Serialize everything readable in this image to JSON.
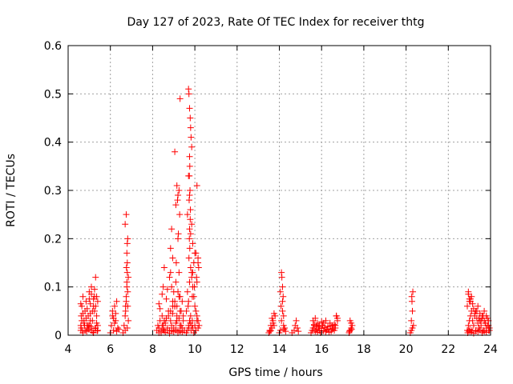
{
  "chart_data": {
    "type": "scatter",
    "title": "Day 127 of 2023, Rate Of TEC Index for receiver thtg",
    "xlabel": "GPS time / hours",
    "ylabel": "ROTI / TECUs",
    "xlim": [
      4,
      24
    ],
    "ylim": [
      0,
      0.6
    ],
    "xticks": [
      "4",
      "6",
      "8",
      "10",
      "12",
      "14",
      "16",
      "18",
      "20",
      "22",
      "24"
    ],
    "yticks": [
      "0",
      "0.1",
      "0.2",
      "0.3",
      "0.4",
      "0.5",
      "0.6"
    ],
    "grid": true,
    "marker": "+",
    "color": "#ff0000",
    "series": [
      {
        "x": [
          4.6,
          4.62,
          4.65,
          4.7,
          4.75,
          4.8,
          4.85,
          4.9,
          4.95,
          5.0,
          5.05,
          5.1,
          5.15,
          5.2,
          5.25,
          5.3,
          5.35,
          5.4,
          4.6,
          4.7,
          4.8,
          4.9,
          5.0,
          5.1,
          5.2,
          5.3,
          5.4,
          4.65,
          4.75,
          4.85,
          4.95,
          5.05,
          5.15,
          5.25,
          5.35,
          4.6,
          4.7,
          4.9,
          5.0,
          5.05,
          5.1,
          5.2,
          5.25,
          5.3,
          5.35,
          5.4,
          4.62,
          4.68,
          4.78,
          4.88,
          4.98,
          5.08,
          5.18,
          5.28,
          5.38,
          6.0,
          6.05,
          6.1,
          6.15,
          6.2,
          6.25,
          6.3,
          6.35,
          6.1,
          6.2,
          6.3,
          6.4,
          6.15,
          6.25,
          6.6,
          6.65,
          6.7,
          6.72,
          6.75,
          6.78,
          6.8,
          6.82,
          6.85,
          6.7,
          6.75,
          6.8,
          6.8,
          6.78,
          6.82,
          6.75,
          6.72,
          6.85,
          6.7,
          6.8,
          6.78,
          6.76,
          6.82,
          8.2,
          8.25,
          8.3,
          8.35,
          8.4,
          8.45,
          8.5,
          8.55,
          8.6,
          8.65,
          8.7,
          8.75,
          8.8,
          8.85,
          8.9,
          8.95,
          9.0,
          9.05,
          9.1,
          9.15,
          9.2,
          9.25,
          9.3,
          9.35,
          9.4,
          9.45,
          9.5,
          8.3,
          8.4,
          8.5,
          8.6,
          8.7,
          8.8,
          8.9,
          9.0,
          9.1,
          9.2,
          9.3,
          9.4,
          9.5,
          8.45,
          8.55,
          8.75,
          8.85,
          8.95,
          9.05,
          9.15,
          9.25,
          9.35,
          8.5,
          8.55,
          8.8,
          8.85,
          8.9,
          8.95,
          9.0,
          9.1,
          9.15,
          9.2,
          9.25,
          9.3,
          9.4,
          8.3,
          8.35,
          8.45,
          8.65,
          8.7,
          8.95,
          9.05,
          9.2,
          9.3,
          9.45,
          9.1,
          9.2,
          9.15,
          9.25,
          9.18,
          9.22,
          9.12,
          9.28,
          9.05,
          9.3,
          8.9,
          8.85,
          9.6,
          9.65,
          9.7,
          9.72,
          9.75,
          9.78,
          9.8,
          9.82,
          9.85,
          9.88,
          9.9,
          9.95,
          10.0,
          10.05,
          10.1,
          10.15,
          10.2,
          9.7,
          9.72,
          9.75,
          9.78,
          9.8,
          9.82,
          9.85,
          9.75,
          9.76,
          9.74,
          9.77,
          9.73,
          9.79,
          9.78,
          9.75,
          9.74,
          9.76,
          9.72,
          9.8,
          9.85,
          9.9,
          9.95,
          10.0,
          10.05,
          10.1,
          10.15,
          9.7,
          9.65,
          9.75,
          9.85,
          9.95,
          10.05,
          10.15,
          9.6,
          9.68,
          9.88,
          9.98,
          10.08,
          10.18,
          9.8,
          9.9,
          10.0,
          10.1,
          9.65,
          9.75,
          9.85,
          10.15,
          9.7,
          9.9,
          10.1,
          13.5,
          13.55,
          13.6,
          13.65,
          13.7,
          13.75,
          13.8,
          13.6,
          13.7,
          13.65,
          13.75,
          13.55,
          14.0,
          14.05,
          14.1,
          14.15,
          14.2,
          14.25,
          14.3,
          14.1,
          14.12,
          14.15,
          14.18,
          14.08,
          14.2,
          14.15,
          14.05,
          14.22,
          14.6,
          14.7,
          14.8,
          14.9,
          14.75,
          14.85,
          15.5,
          15.55,
          15.6,
          15.65,
          15.7,
          15.75,
          15.8,
          15.85,
          15.9,
          15.95,
          16.0,
          16.05,
          16.1,
          16.15,
          16.2,
          16.25,
          16.3,
          16.35,
          16.4,
          16.45,
          16.5,
          16.55,
          16.6,
          16.65,
          16.7,
          16.75,
          15.6,
          15.7,
          15.8,
          15.9,
          16.0,
          16.2,
          16.4,
          16.6,
          16.7,
          16.75,
          15.65,
          15.75,
          15.85,
          16.1,
          16.3,
          16.5,
          16.65,
          17.3,
          17.35,
          17.4,
          17.45,
          17.35,
          17.4,
          17.32,
          17.42,
          20.2,
          20.25,
          20.3,
          20.35,
          20.25,
          20.3,
          20.28,
          20.32,
          20.27,
          22.9,
          22.95,
          23.0,
          23.05,
          23.1,
          23.15,
          23.2,
          23.25,
          23.3,
          23.35,
          23.4,
          23.45,
          23.5,
          23.55,
          23.6,
          23.65,
          23.7,
          23.75,
          23.8,
          23.85,
          23.9,
          23.95,
          22.9,
          23.0,
          23.1,
          23.2,
          23.3,
          23.4,
          23.5,
          23.6,
          23.7,
          23.8,
          23.9,
          22.95,
          23.05,
          23.15,
          23.25,
          23.35,
          23.45,
          23.55,
          23.65,
          23.75,
          23.85,
          23.95,
          22.92,
          22.98,
          23.02,
          23.08,
          23.12,
          23.2,
          23.3,
          23.4,
          23.5,
          23.6,
          23.7,
          23.8,
          23.9,
          22.95,
          23.0,
          23.05
        ],
        "y": [
          0.02,
          0.04,
          0.06,
          0.08,
          0.03,
          0.05,
          0.07,
          0.02,
          0.04,
          0.09,
          0.03,
          0.1,
          0.05,
          0.06,
          0.08,
          0.12,
          0.04,
          0.02,
          0.01,
          0.005,
          0.01,
          0.015,
          0.02,
          0.01,
          0.005,
          0.015,
          0.01,
          0.03,
          0.025,
          0.035,
          0.02,
          0.045,
          0.03,
          0.05,
          0.025,
          0.065,
          0.045,
          0.055,
          0.075,
          0.065,
          0.085,
          0.075,
          0.095,
          0.06,
          0.08,
          0.07,
          0.015,
          0.01,
          0.02,
          0.008,
          0.012,
          0.018,
          0.006,
          0.014,
          0.009,
          0.005,
          0.02,
          0.04,
          0.01,
          0.06,
          0.03,
          0.07,
          0.015,
          0.05,
          0.025,
          0.008,
          0.012,
          0.035,
          0.045,
          0.005,
          0.02,
          0.04,
          0.06,
          0.08,
          0.1,
          0.19,
          0.2,
          0.12,
          0.23,
          0.25,
          0.15,
          0.13,
          0.11,
          0.09,
          0.07,
          0.05,
          0.03,
          0.01,
          0.015,
          0.17,
          0.14,
          0.06,
          0.01,
          0.02,
          0.015,
          0.03,
          0.005,
          0.04,
          0.02,
          0.01,
          0.025,
          0.035,
          0.015,
          0.05,
          0.01,
          0.03,
          0.02,
          0.045,
          0.015,
          0.06,
          0.025,
          0.04,
          0.01,
          0.035,
          0.02,
          0.05,
          0.015,
          0.03,
          0.01,
          0.005,
          0.008,
          0.012,
          0.006,
          0.01,
          0.004,
          0.009,
          0.007,
          0.011,
          0.005,
          0.008,
          0.006,
          0.01,
          0.02,
          0.03,
          0.04,
          0.05,
          0.06,
          0.07,
          0.03,
          0.08,
          0.02,
          0.1,
          0.14,
          0.12,
          0.18,
          0.22,
          0.16,
          0.09,
          0.11,
          0.06,
          0.2,
          0.13,
          0.08,
          0.07,
          0.065,
          0.055,
          0.085,
          0.075,
          0.095,
          0.07,
          0.06,
          0.09,
          0.05,
          0.04,
          0.27,
          0.29,
          0.31,
          0.3,
          0.28,
          0.21,
          0.15,
          0.25,
          0.38,
          0.49,
          0.1,
          0.13,
          0.005,
          0.01,
          0.02,
          0.015,
          0.03,
          0.025,
          0.04,
          0.01,
          0.02,
          0.03,
          0.015,
          0.005,
          0.02,
          0.01,
          0.03,
          0.015,
          0.02,
          0.51,
          0.5,
          0.47,
          0.45,
          0.43,
          0.41,
          0.39,
          0.37,
          0.35,
          0.33,
          0.3,
          0.28,
          0.26,
          0.24,
          0.22,
          0.2,
          0.18,
          0.16,
          0.14,
          0.12,
          0.1,
          0.08,
          0.06,
          0.05,
          0.04,
          0.03,
          0.07,
          0.09,
          0.11,
          0.13,
          0.15,
          0.17,
          0.15,
          0.05,
          0.06,
          0.08,
          0.1,
          0.12,
          0.14,
          0.21,
          0.19,
          0.17,
          0.31,
          0.25,
          0.29,
          0.23,
          0.16,
          0.33,
          0.13,
          0.11,
          0.005,
          0.01,
          0.02,
          0.015,
          0.03,
          0.045,
          0.04,
          0.01,
          0.025,
          0.035,
          0.02,
          0.008,
          0.005,
          0.01,
          0.03,
          0.05,
          0.02,
          0.015,
          0.008,
          0.13,
          0.12,
          0.1,
          0.08,
          0.06,
          0.04,
          0.07,
          0.09,
          0.012,
          0.005,
          0.01,
          0.03,
          0.008,
          0.02,
          0.015,
          0.005,
          0.01,
          0.015,
          0.02,
          0.008,
          0.012,
          0.006,
          0.018,
          0.01,
          0.005,
          0.014,
          0.02,
          0.009,
          0.016,
          0.007,
          0.011,
          0.013,
          0.006,
          0.019,
          0.008,
          0.012,
          0.015,
          0.01,
          0.02,
          0.04,
          0.03,
          0.03,
          0.035,
          0.025,
          0.02,
          0.028,
          0.03,
          0.025,
          0.022,
          0.04,
          0.035,
          0.022,
          0.018,
          0.015,
          0.025,
          0.018,
          0.02,
          0.015,
          0.005,
          0.01,
          0.015,
          0.02,
          0.03,
          0.025,
          0.008,
          0.012,
          0.005,
          0.01,
          0.015,
          0.02,
          0.03,
          0.05,
          0.07,
          0.09,
          0.08,
          0.01,
          0.02,
          0.03,
          0.04,
          0.05,
          0.03,
          0.02,
          0.04,
          0.01,
          0.035,
          0.025,
          0.015,
          0.03,
          0.02,
          0.04,
          0.01,
          0.03,
          0.025,
          0.015,
          0.02,
          0.03,
          0.01,
          0.06,
          0.07,
          0.08,
          0.055,
          0.05,
          0.06,
          0.045,
          0.035,
          0.05,
          0.04,
          0.02,
          0.09,
          0.075,
          0.065,
          0.045,
          0.05,
          0.035,
          0.03,
          0.04,
          0.025,
          0.035,
          0.015,
          0.005,
          0.008,
          0.012,
          0.006,
          0.01,
          0.004,
          0.009,
          0.007,
          0.011,
          0.005,
          0.008,
          0.006,
          0.01,
          0.085,
          0.075,
          0.07
        ]
      }
    ]
  }
}
